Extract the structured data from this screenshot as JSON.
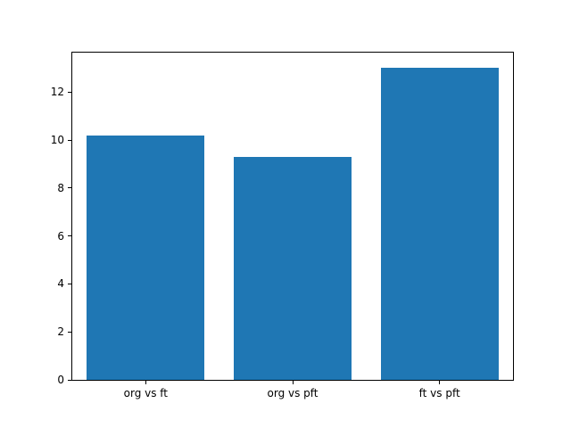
{
  "chart_data": {
    "type": "bar",
    "categories": [
      "org vs ft",
      "org vs pft",
      "ft vs pft"
    ],
    "values": [
      10.2,
      9.3,
      13.0
    ],
    "title": "",
    "xlabel": "",
    "ylabel": "",
    "ylim": [
      0,
      13.65
    ],
    "yticks": [
      0,
      2,
      4,
      6,
      8,
      10,
      12
    ],
    "bar_color": "#1f77b4",
    "bar_width_fraction": 0.8,
    "grid": false,
    "legend": false,
    "background_color": "#ffffff",
    "spine_color": "#000000"
  }
}
